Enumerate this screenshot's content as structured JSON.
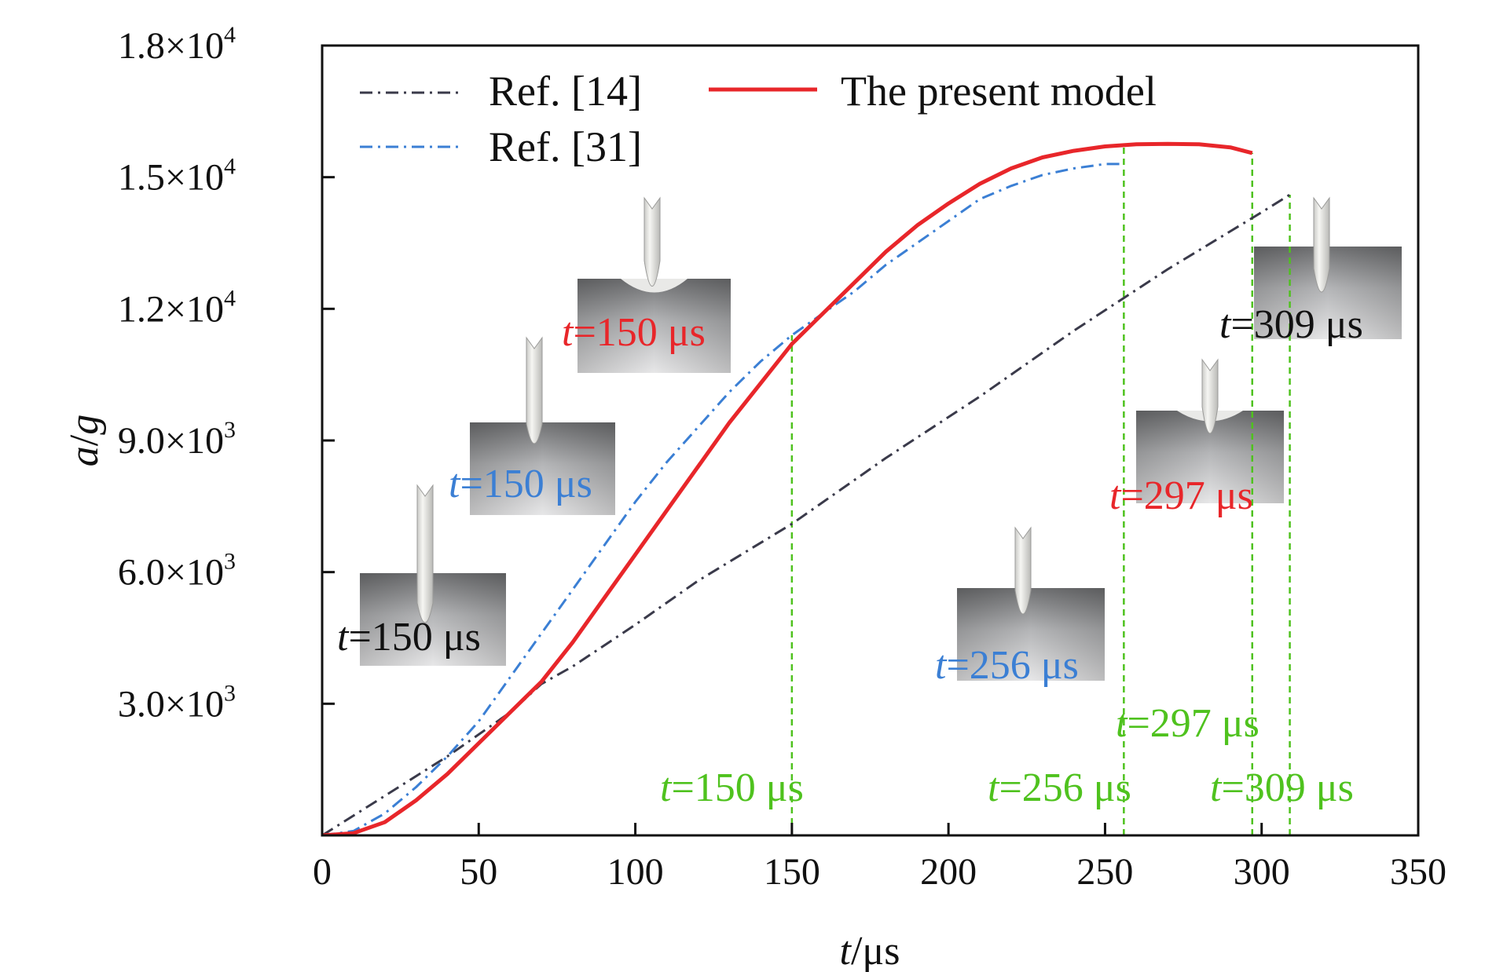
{
  "chart_data": {
    "type": "line",
    "xlabel_var": "t",
    "xlabel_unit": "/μs",
    "ylabel_var": "a",
    "ylabel_sep": "/",
    "ylabel_unit": "g",
    "xlim": [
      0,
      350
    ],
    "ylim": [
      0,
      18000
    ],
    "x_ticks": [
      {
        "value": 0,
        "label": "0"
      },
      {
        "value": 50,
        "label": "50"
      },
      {
        "value": 100,
        "label": "100"
      },
      {
        "value": 150,
        "label": "150"
      },
      {
        "value": 200,
        "label": "200"
      },
      {
        "value": 250,
        "label": "250"
      },
      {
        "value": 300,
        "label": "300"
      },
      {
        "value": 350,
        "label": "350"
      }
    ],
    "y_ticks": [
      {
        "value": 3000,
        "mant": "3.0×10",
        "exp": "3"
      },
      {
        "value": 6000,
        "mant": "6.0×10",
        "exp": "3"
      },
      {
        "value": 9000,
        "mant": "9.0×10",
        "exp": "3"
      },
      {
        "value": 12000,
        "mant": "1.2×10",
        "exp": "4"
      },
      {
        "value": 15000,
        "mant": "1.5×10",
        "exp": "4"
      },
      {
        "value": 18000,
        "mant": "1.8×10",
        "exp": "4"
      }
    ],
    "grid": false,
    "legend_position": "top-left",
    "series": [
      {
        "name": "Ref. [14]",
        "color": "#3a3a4a",
        "dash": "dashdot",
        "x": [
          0,
          20,
          40,
          60,
          70,
          80,
          100,
          120,
          150,
          180,
          210,
          240,
          270,
          300,
          309
        ],
        "y": [
          0,
          900,
          1800,
          2800,
          3450,
          3850,
          4800,
          5800,
          7100,
          8600,
          10000,
          11500,
          12900,
          14200,
          14600
        ]
      },
      {
        "name": "Ref. [31]",
        "color": "#3b7fd4",
        "dash": "dashdot",
        "x": [
          0,
          10,
          20,
          30,
          40,
          50,
          60,
          70,
          80,
          90,
          100,
          110,
          120,
          130,
          140,
          150,
          160,
          170,
          180,
          190,
          200,
          210,
          220,
          230,
          240,
          250,
          256
        ],
        "y": [
          0,
          100,
          500,
          1100,
          1800,
          2600,
          3600,
          4600,
          5600,
          6600,
          7600,
          8500,
          9300,
          10100,
          10800,
          11400,
          11900,
          12400,
          13000,
          13500,
          14000,
          14500,
          14800,
          15050,
          15200,
          15300,
          15300
        ]
      },
      {
        "name": "The present model",
        "color": "#e8262a",
        "dash": "solid",
        "x": [
          0,
          10,
          20,
          30,
          40,
          50,
          60,
          70,
          80,
          90,
          100,
          110,
          120,
          130,
          140,
          150,
          160,
          170,
          180,
          190,
          200,
          210,
          220,
          230,
          240,
          250,
          260,
          270,
          280,
          290,
          297
        ],
        "y": [
          0,
          50,
          300,
          800,
          1400,
          2100,
          2800,
          3500,
          4400,
          5400,
          6400,
          7400,
          8400,
          9400,
          10300,
          11200,
          11900,
          12600,
          13300,
          13900,
          14400,
          14850,
          15200,
          15450,
          15600,
          15700,
          15750,
          15760,
          15750,
          15680,
          15550
        ]
      }
    ],
    "vlines": [
      {
        "x": 150,
        "color": "#4fc21e"
      },
      {
        "x": 256,
        "color": "#4fc21e"
      },
      {
        "x": 297,
        "color": "#4fc21e"
      },
      {
        "x": 309,
        "color": "#4fc21e"
      }
    ],
    "annotations": [
      {
        "var": "t",
        "rest": "=150 μs",
        "color": "#4fc21e"
      },
      {
        "var": "t",
        "rest": "=256 μs",
        "color": "#4fc21e"
      },
      {
        "var": "t",
        "rest": "=297 μs",
        "color": "#4fc21e"
      },
      {
        "var": "t",
        "rest": "=309 μs",
        "color": "#4fc21e"
      },
      {
        "var": "t",
        "rest": "=150 μs",
        "color": "#111111"
      },
      {
        "var": "t",
        "rest": "=150 μs",
        "color": "#3b7fd4"
      },
      {
        "var": "t",
        "rest": "=150 μs",
        "color": "#e8262a"
      },
      {
        "var": "t",
        "rest": "=256 μs",
        "color": "#3b7fd4"
      },
      {
        "var": "t",
        "rest": "=297 μs",
        "color": "#e8262a"
      },
      {
        "var": "t",
        "rest": "=309 μs",
        "color": "#111111"
      }
    ]
  }
}
